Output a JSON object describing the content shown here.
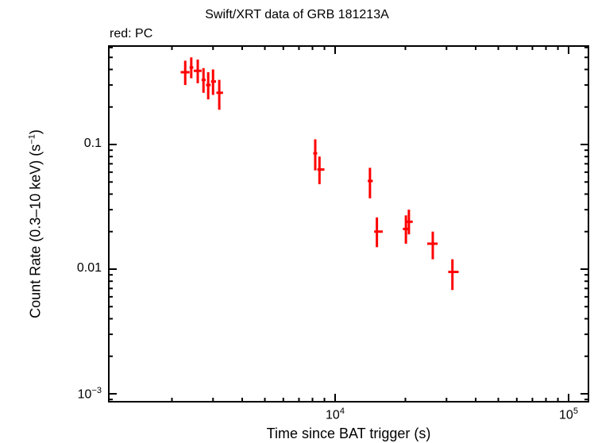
{
  "chart_data": {
    "type": "scatter",
    "title": "Swift/XRT data of GRB 181213A",
    "subtitle": "red: PC",
    "xlabel": "Time since BAT trigger (s)",
    "ylabel": "Count Rate (0.3–10 keV) (s⁻¹)",
    "xscale": "log",
    "yscale": "log",
    "xlim": [
      1500,
      120000
    ],
    "ylim": [
      0.00088,
      0.5
    ],
    "x_ticks": [
      {
        "value": 10000,
        "base": "10",
        "exp": "4"
      },
      {
        "value": 100000,
        "base": "10",
        "exp": "5"
      }
    ],
    "y_ticks": [
      {
        "value": 0.1,
        "label": "0.1"
      },
      {
        "value": 0.01,
        "label": "0.01"
      },
      {
        "value": 0.001,
        "base": "10",
        "exp": "−3"
      }
    ],
    "grid": false,
    "legend": "none",
    "series": [
      {
        "name": "PC",
        "color": "#ff0000",
        "points": [
          {
            "x": 2280,
            "y": 0.38,
            "xerr": [
              2180,
              2380
            ],
            "yerr": [
              0.3,
              0.47
            ]
          },
          {
            "x": 2420,
            "y": 0.415,
            "xerr": [
              2380,
              2470
            ],
            "yerr": [
              0.34,
              0.5
            ]
          },
          {
            "x": 2580,
            "y": 0.39,
            "xerr": [
              2480,
              2680
            ],
            "yerr": [
              0.31,
              0.48
            ]
          },
          {
            "x": 2730,
            "y": 0.33,
            "xerr": [
              2680,
              2790
            ],
            "yerr": [
              0.26,
              0.41
            ]
          },
          {
            "x": 2860,
            "y": 0.3,
            "xerr": [
              2800,
              2930
            ],
            "yerr": [
              0.23,
              0.38
            ]
          },
          {
            "x": 3000,
            "y": 0.32,
            "xerr": [
              2940,
              3090
            ],
            "yerr": [
              0.25,
              0.4
            ]
          },
          {
            "x": 3190,
            "y": 0.26,
            "xerr": [
              3100,
              3310
            ],
            "yerr": [
              0.19,
              0.33
            ]
          },
          {
            "x": 8220,
            "y": 0.085,
            "xerr": [
              8060,
              8380
            ],
            "yerr": [
              0.062,
              0.11
            ]
          },
          {
            "x": 8570,
            "y": 0.063,
            "xerr": [
              8390,
              9000
            ],
            "yerr": [
              0.048,
              0.08
            ]
          },
          {
            "x": 14100,
            "y": 0.051,
            "xerr": [
              13800,
              14500
            ],
            "yerr": [
              0.037,
              0.065
            ]
          },
          {
            "x": 15100,
            "y": 0.02,
            "xerr": [
              14700,
              16000
            ],
            "yerr": [
              0.015,
              0.026
            ]
          },
          {
            "x": 20100,
            "y": 0.021,
            "xerr": [
              19500,
              20600
            ],
            "yerr": [
              0.016,
              0.027
            ]
          },
          {
            "x": 20700,
            "y": 0.024,
            "xerr": [
              20300,
              21500
            ],
            "yerr": [
              0.019,
              0.03
            ]
          },
          {
            "x": 26200,
            "y": 0.016,
            "xerr": [
              24800,
              27500
            ],
            "yerr": [
              0.012,
              0.02
            ]
          },
          {
            "x": 31800,
            "y": 0.0095,
            "xerr": [
              30500,
              33800
            ],
            "yerr": [
              0.0068,
              0.012
            ]
          }
        ]
      }
    ]
  },
  "labels": {
    "title": "Swift/XRT data of GRB 181213A",
    "subtitle": "red: PC",
    "xlabel": "Time since BAT trigger (s)",
    "ylabel": "Count Rate (0.3–10 keV) (s",
    "ylabel_sup": "−1",
    "ylabel_end": ")",
    "ytick_0": "0.1",
    "ytick_1": "0.01",
    "ytick_2_base": "10",
    "ytick_2_exp": "−3",
    "xtick_0_base": "10",
    "xtick_0_exp": "4",
    "xtick_1_base": "10",
    "xtick_1_exp": "5"
  }
}
